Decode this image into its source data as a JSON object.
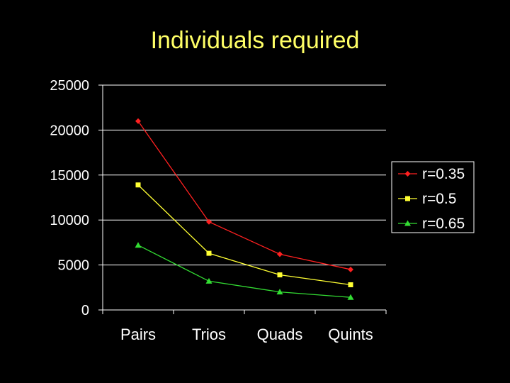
{
  "chart_data": {
    "type": "line",
    "title": "Individuals required",
    "xlabel": "",
    "ylabel": "",
    "categories": [
      "Pairs",
      "Trios",
      "Quads",
      "Quints"
    ],
    "ylim": [
      0,
      25000
    ],
    "yticks": [
      "0",
      "5000",
      "10000",
      "15000",
      "20000",
      "25000"
    ],
    "grid": true,
    "legend_position": "right",
    "series": [
      {
        "name": "r=0.35",
        "color": "#ff2020",
        "marker": "diamond",
        "values": [
          21000,
          9800,
          6200,
          4500
        ]
      },
      {
        "name": "r=0.5",
        "color": "#ffff33",
        "marker": "square",
        "values": [
          13900,
          6300,
          3900,
          2800
        ]
      },
      {
        "name": "r=0.65",
        "color": "#33dd33",
        "marker": "triangle",
        "values": [
          7200,
          3200,
          2000,
          1400
        ]
      }
    ]
  }
}
